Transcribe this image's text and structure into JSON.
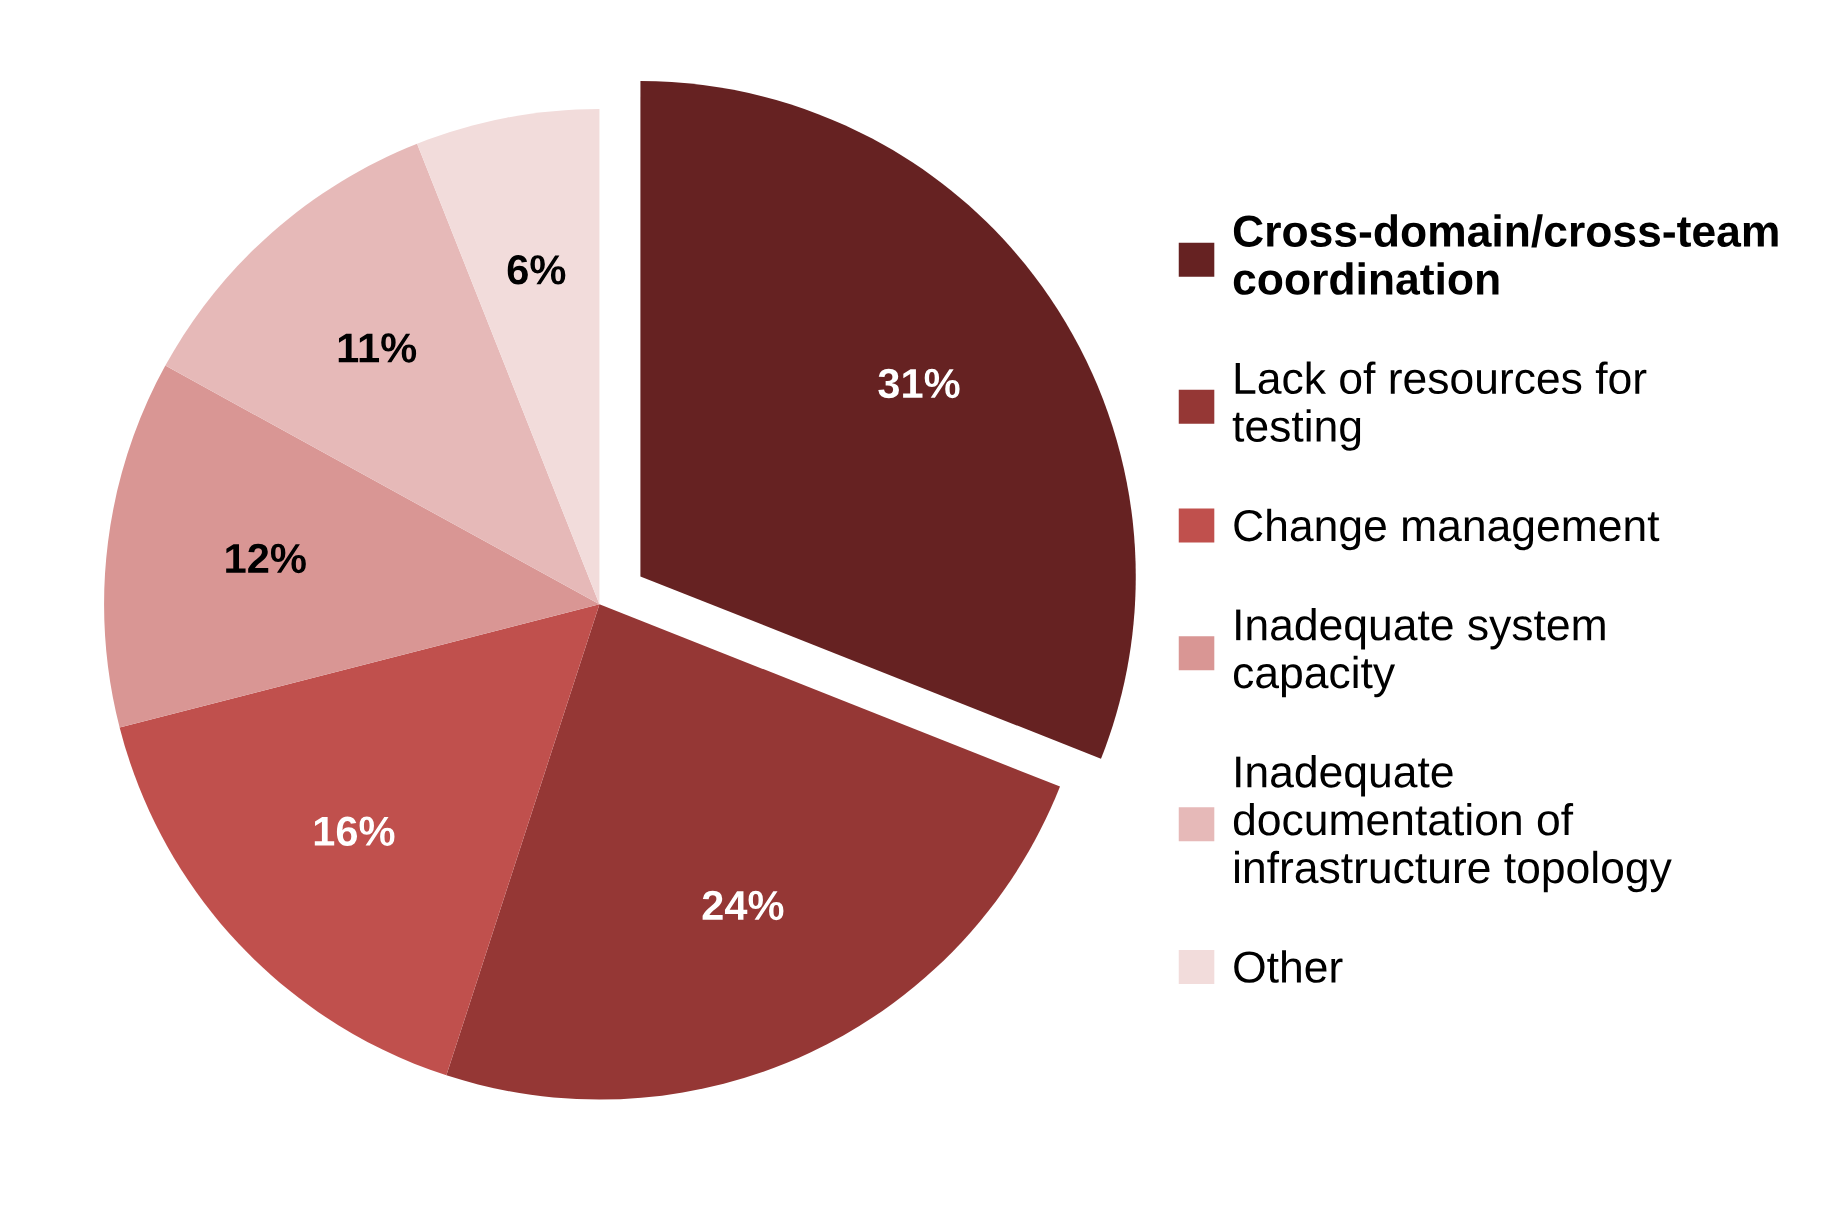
{
  "chart_data": {
    "type": "pie",
    "categories": [
      "Cross-domain/cross-team\ncoordination",
      "Lack of resources for\ntesting",
      "Change management",
      "Inadequate system\ncapacity",
      "Inadequate\ndocumentation of\ninfrastructure topology",
      "Other"
    ],
    "values": [
      31,
      24,
      16,
      12,
      11,
      6
    ],
    "value_labels": [
      "31%",
      "24%",
      "16%",
      "12%",
      "11%",
      "6%"
    ],
    "colors": [
      "#662222",
      "#953735",
      "#c0504d",
      "#d99694",
      "#e6b9b8",
      "#f2dcdb"
    ],
    "legend": "right"
  }
}
